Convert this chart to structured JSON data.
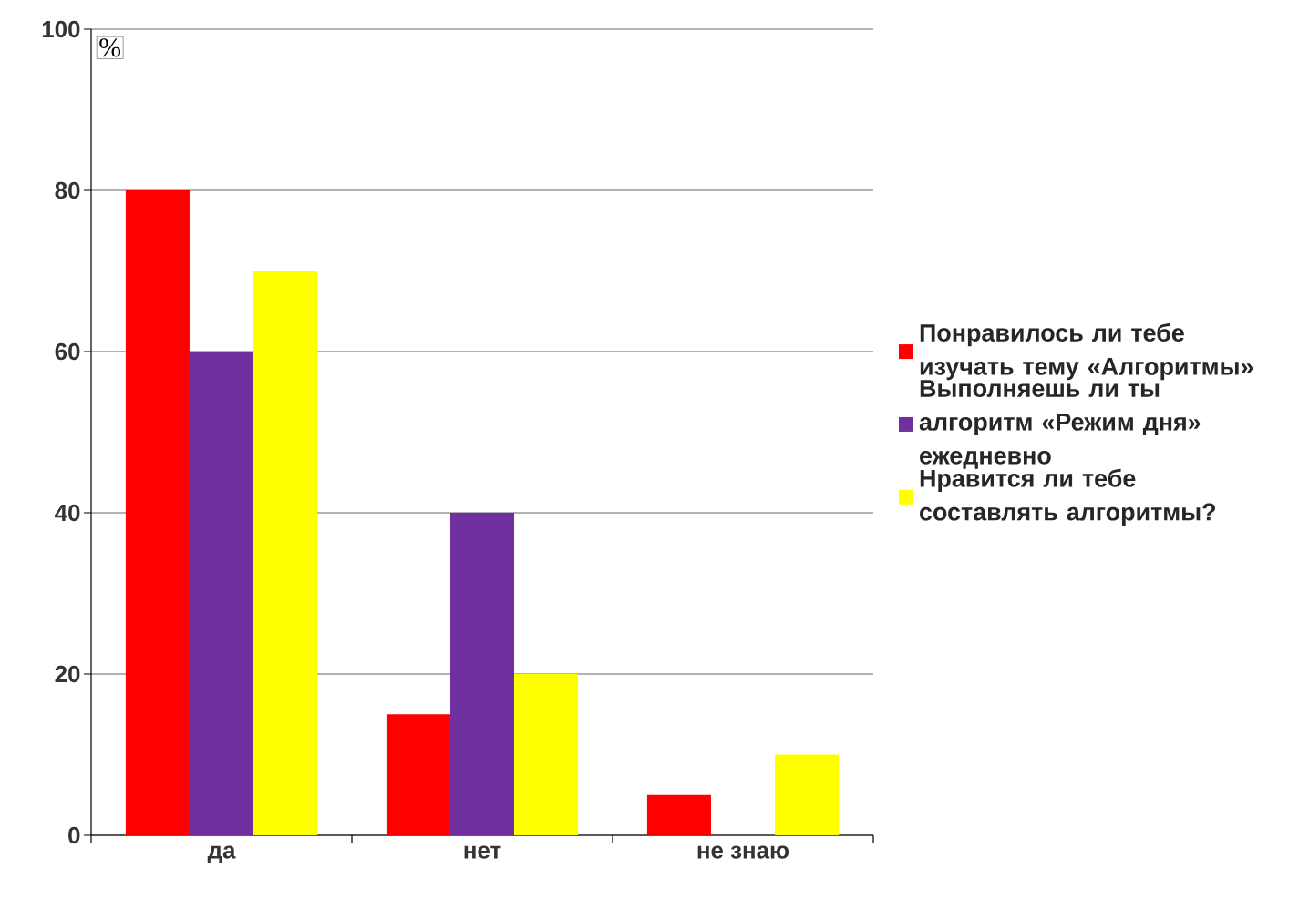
{
  "chart_data": {
    "type": "bar",
    "ylabel": "%",
    "categories": [
      "да",
      "нет",
      "не знаю"
    ],
    "series": [
      {
        "name": "Понравилось ли тебе изучать тему «Алгоритмы»",
        "color": "#ff0000",
        "values": [
          80,
          15,
          5
        ]
      },
      {
        "name": "Выполняешь ли ты алгоритм «Режим дня» ежедневно",
        "color": "#7030a0",
        "values": [
          60,
          40,
          0
        ]
      },
      {
        "name": "Нравится ли тебе составлять алгоритмы?",
        "color": "#ffff00",
        "values": [
          70,
          20,
          10
        ]
      }
    ],
    "ylim": [
      0,
      100
    ],
    "yticks": [
      0,
      20,
      40,
      60,
      80,
      100
    ],
    "grid": "y",
    "legend": "right"
  }
}
